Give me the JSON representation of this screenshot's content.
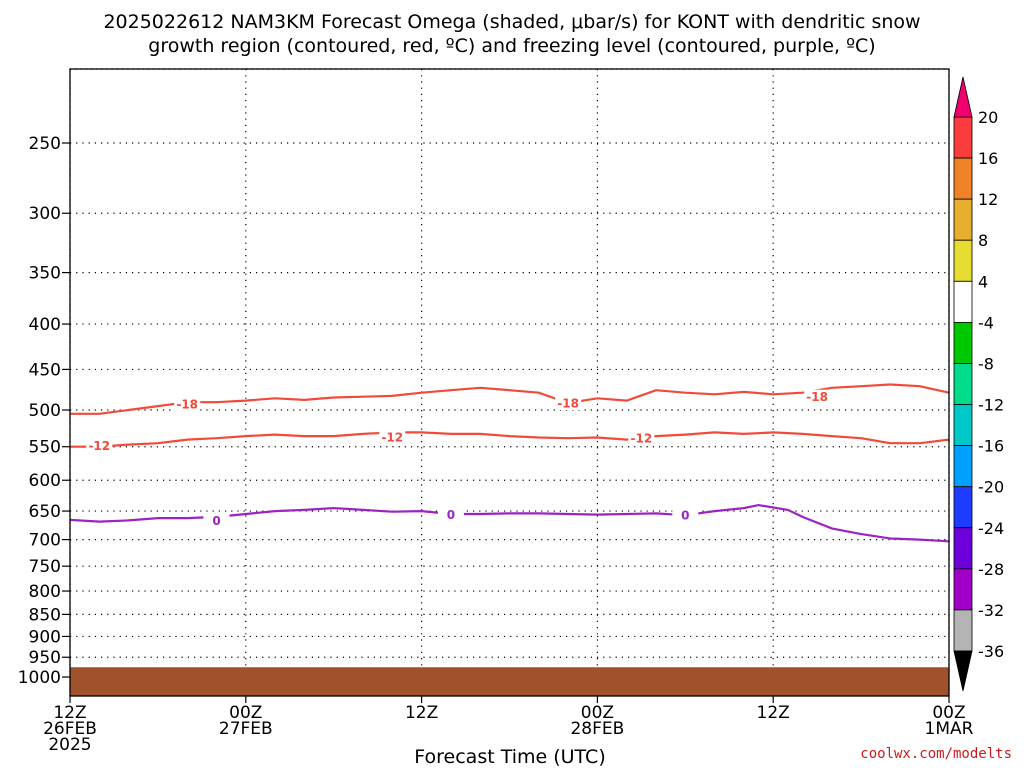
{
  "chart_data": {
    "type": "heatmap",
    "title_lines": [
      "2025022612 NAM3KM Forecast Omega (shaded, μbar/s) for KONT with dendritic snow",
      "growth region (contoured, red, ºC) and freezing level (contoured, purple, ºC)"
    ],
    "xlabel": "Forecast Time (UTC)",
    "credit": "coolwx.com/modelts",
    "x_range_hours": [
      0,
      60
    ],
    "y_range_hpa": [
      200,
      1025
    ],
    "grid": true,
    "legend_placement": "right colorbar",
    "x_ticks": [
      {
        "hour": 0,
        "lines": [
          "12Z",
          "26FEB",
          "2025"
        ]
      },
      {
        "hour": 12,
        "lines": [
          "00Z",
          "27FEB"
        ]
      },
      {
        "hour": 24,
        "lines": [
          "12Z"
        ]
      },
      {
        "hour": 36,
        "lines": [
          "00Z",
          "28FEB"
        ]
      },
      {
        "hour": 48,
        "lines": [
          "12Z"
        ]
      },
      {
        "hour": 60,
        "lines": [
          "00Z",
          "1MAR"
        ]
      }
    ],
    "y_ticks": [
      250,
      300,
      350,
      400,
      450,
      500,
      550,
      600,
      650,
      700,
      750,
      800,
      850,
      900,
      950,
      1000
    ],
    "colorbar": {
      "colors": [
        "#b4b4b4",
        "#a000c8",
        "#6e00dc",
        "#1e3cff",
        "#00a0ff",
        "#00c8c8",
        "#00dc8c",
        "#00c800",
        "#ffffff",
        "#e6dc32",
        "#e6af2d",
        "#f08228",
        "#fa3c3c"
      ],
      "over_color": "#f0006e",
      "under_color": "#000000",
      "labels": [
        "-36",
        "-32",
        "-28",
        "-24",
        "-20",
        "-16",
        "-12",
        "-8",
        "-4",
        "4",
        "8",
        "12",
        "16",
        "20"
      ]
    },
    "ground": {
      "from_hpa": 975,
      "color": "#a0522d"
    },
    "series": [
      {
        "label": "-18",
        "color": "#f24a3a",
        "label_positions": [
          [
            8,
            492
          ],
          [
            34,
            491
          ],
          [
            51,
            483
          ]
        ],
        "points": [
          [
            0,
            505
          ],
          [
            2,
            505
          ],
          [
            4,
            500
          ],
          [
            6,
            495
          ],
          [
            8,
            490
          ],
          [
            10,
            490
          ],
          [
            12,
            488
          ],
          [
            14,
            485
          ],
          [
            16,
            487
          ],
          [
            18,
            484
          ],
          [
            20,
            483
          ],
          [
            22,
            482
          ],
          [
            24,
            478
          ],
          [
            26,
            475
          ],
          [
            28,
            472
          ],
          [
            30,
            475
          ],
          [
            32,
            478
          ],
          [
            34,
            491
          ],
          [
            36,
            485
          ],
          [
            38,
            488
          ],
          [
            40,
            475
          ],
          [
            42,
            478
          ],
          [
            44,
            480
          ],
          [
            46,
            477
          ],
          [
            48,
            480
          ],
          [
            50,
            478
          ],
          [
            52,
            472
          ],
          [
            54,
            470
          ],
          [
            56,
            468
          ],
          [
            58,
            470
          ],
          [
            60,
            478
          ]
        ]
      },
      {
        "label": "-12",
        "color": "#f24a3a",
        "label_positions": [
          [
            2,
            548
          ],
          [
            22,
            536
          ],
          [
            39,
            538
          ]
        ],
        "points": [
          [
            0,
            550
          ],
          [
            2,
            550
          ],
          [
            4,
            547
          ],
          [
            6,
            545
          ],
          [
            8,
            540
          ],
          [
            10,
            538
          ],
          [
            12,
            535
          ],
          [
            14,
            533
          ],
          [
            16,
            535
          ],
          [
            18,
            535
          ],
          [
            20,
            532
          ],
          [
            22,
            530
          ],
          [
            24,
            530
          ],
          [
            26,
            532
          ],
          [
            28,
            532
          ],
          [
            30,
            535
          ],
          [
            32,
            537
          ],
          [
            34,
            538
          ],
          [
            36,
            537
          ],
          [
            38,
            540
          ],
          [
            40,
            535
          ],
          [
            42,
            533
          ],
          [
            44,
            530
          ],
          [
            46,
            532
          ],
          [
            48,
            530
          ],
          [
            50,
            532
          ],
          [
            52,
            535
          ],
          [
            54,
            538
          ],
          [
            56,
            545
          ],
          [
            58,
            545
          ],
          [
            60,
            540
          ]
        ]
      },
      {
        "label": "0",
        "color": "#9e22c2",
        "label_positions": [
          [
            10,
            666
          ],
          [
            26,
            656
          ],
          [
            42,
            657
          ]
        ],
        "points": [
          [
            0,
            665
          ],
          [
            2,
            668
          ],
          [
            4,
            666
          ],
          [
            6,
            662
          ],
          [
            8,
            662
          ],
          [
            10,
            660
          ],
          [
            12,
            655
          ],
          [
            14,
            650
          ],
          [
            16,
            648
          ],
          [
            18,
            645
          ],
          [
            20,
            648
          ],
          [
            22,
            651
          ],
          [
            24,
            650
          ],
          [
            26,
            655
          ],
          [
            28,
            655
          ],
          [
            30,
            654
          ],
          [
            32,
            654
          ],
          [
            34,
            655
          ],
          [
            36,
            656
          ],
          [
            38,
            655
          ],
          [
            40,
            654
          ],
          [
            42,
            657
          ],
          [
            44,
            650
          ],
          [
            46,
            645
          ],
          [
            47,
            640
          ],
          [
            49,
            648
          ],
          [
            50,
            660
          ],
          [
            52,
            680
          ],
          [
            54,
            690
          ],
          [
            56,
            698
          ],
          [
            58,
            700
          ],
          [
            60,
            703
          ]
        ]
      }
    ]
  }
}
